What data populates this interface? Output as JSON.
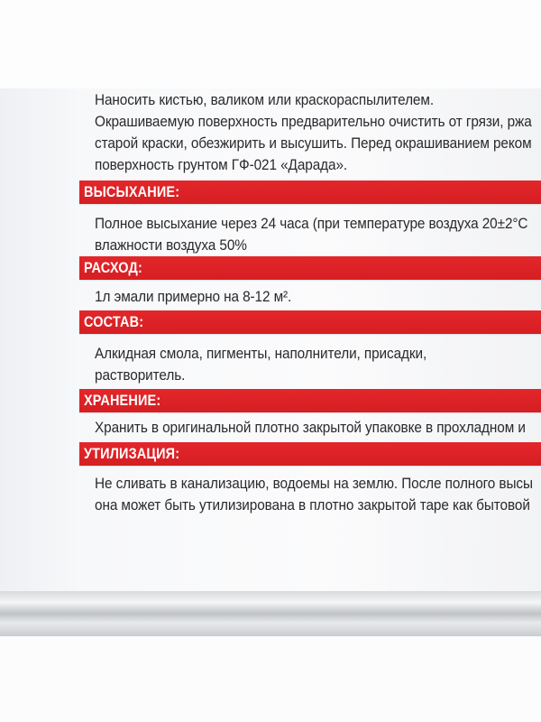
{
  "colors": {
    "band": "#d9232a",
    "text": "#2a2a2e"
  },
  "intro": {
    "lines": [
      "Наносить кистью, валиком или краскораспылителем.",
      "Окрашиваемую поверхность предварительно очистить от грязи, ржа",
      "старой краски, обезжирить и высушить. Перед окрашиванием реком",
      "поверхность грунтом ГФ-021 «Дарада»."
    ]
  },
  "sections": [
    {
      "title": "ВЫСЫХАНИЕ:",
      "lines": [
        "Полное высыхание через 24 часа (при температуре воздуха 20±2°С",
        "влажности воздуха 50%"
      ]
    },
    {
      "title": "РАСХОД:",
      "lines": [
        "1л эмали примерно на 8-12 м²."
      ]
    },
    {
      "title": "СОСТАВ:",
      "lines": [
        "Алкидная смола, пигменты, наполнители, присадки,",
        "растворитель."
      ]
    },
    {
      "title": "ХРАНЕНИЕ:",
      "lines": [
        "Хранить в оригинальной плотно закрытой упаковке в прохладном и"
      ]
    },
    {
      "title": "УТИЛИЗАЦИЯ:",
      "lines": [
        "Не сливать в канализацию, водоемы на землю. После полного высы",
        "она может быть утилизирована в плотно закрытой таре как бытовой"
      ]
    }
  ]
}
